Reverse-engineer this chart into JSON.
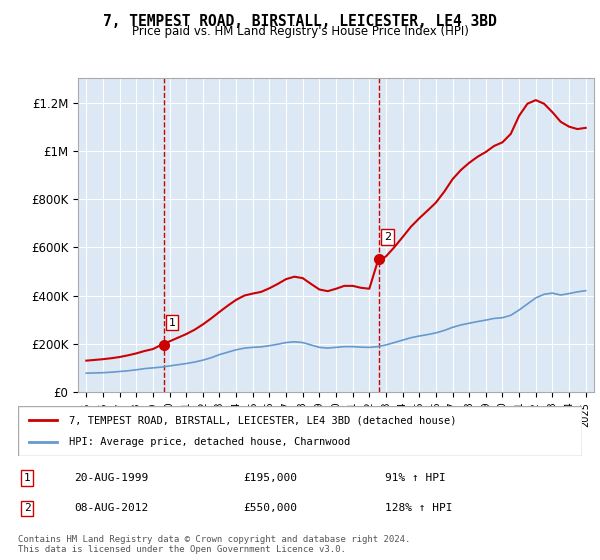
{
  "title": "7, TEMPEST ROAD, BIRSTALL, LEICESTER, LE4 3BD",
  "subtitle": "Price paid vs. HM Land Registry's House Price Index (HPI)",
  "background_color": "#dce9f5",
  "plot_bg_color": "#dce9f5",
  "ylim": [
    0,
    1300000
  ],
  "yticks": [
    0,
    200000,
    400000,
    600000,
    800000,
    1000000,
    1200000
  ],
  "ytick_labels": [
    "£0",
    "£200K",
    "£400K",
    "£600K",
    "£800K",
    "£1M",
    "£1.2M"
  ],
  "sale1_year": 1999.64,
  "sale1_price": 195000,
  "sale1_label": "1",
  "sale1_date": "20-AUG-1999",
  "sale1_hpi_pct": "91% ↑ HPI",
  "sale2_year": 2012.6,
  "sale2_price": 550000,
  "sale2_label": "2",
  "sale2_date": "08-AUG-2012",
  "sale2_hpi_pct": "128% ↑ HPI",
  "red_line_color": "#cc0000",
  "blue_line_color": "#6699cc",
  "vline_color": "#cc0000",
  "legend1_label": "7, TEMPEST ROAD, BIRSTALL, LEICESTER, LE4 3BD (detached house)",
  "legend2_label": "HPI: Average price, detached house, Charnwood",
  "footer": "Contains HM Land Registry data © Crown copyright and database right 2024.\nThis data is licensed under the Open Government Licence v3.0.",
  "hpi_years": [
    1995,
    1995.5,
    1996,
    1996.5,
    1997,
    1997.5,
    1998,
    1998.5,
    1999,
    1999.5,
    2000,
    2000.5,
    2001,
    2001.5,
    2002,
    2002.5,
    2003,
    2003.5,
    2004,
    2004.5,
    2005,
    2005.5,
    2006,
    2006.5,
    2007,
    2007.5,
    2008,
    2008.5,
    2009,
    2009.5,
    2010,
    2010.5,
    2011,
    2011.5,
    2012,
    2012.5,
    2013,
    2013.5,
    2014,
    2014.5,
    2015,
    2015.5,
    2016,
    2016.5,
    2017,
    2017.5,
    2018,
    2018.5,
    2019,
    2019.5,
    2020,
    2020.5,
    2021,
    2021.5,
    2022,
    2022.5,
    2023,
    2023.5,
    2024,
    2024.5,
    2025
  ],
  "hpi_values": [
    78000,
    79000,
    80000,
    82000,
    85000,
    88000,
    92000,
    97000,
    100000,
    103000,
    108000,
    113000,
    118000,
    124000,
    132000,
    142000,
    155000,
    165000,
    175000,
    182000,
    185000,
    187000,
    192000,
    198000,
    205000,
    208000,
    205000,
    195000,
    185000,
    182000,
    185000,
    188000,
    188000,
    186000,
    185000,
    188000,
    195000,
    205000,
    215000,
    225000,
    232000,
    238000,
    245000,
    255000,
    268000,
    278000,
    285000,
    292000,
    298000,
    305000,
    308000,
    318000,
    340000,
    365000,
    390000,
    405000,
    410000,
    402000,
    408000,
    415000,
    420000
  ],
  "property_years": [
    1995,
    1995.5,
    1996,
    1996.5,
    1997,
    1997.5,
    1998,
    1998.5,
    1999,
    1999.5,
    2000,
    2000.5,
    2001,
    2001.5,
    2002,
    2002.5,
    2003,
    2003.5,
    2004,
    2004.5,
    2005,
    2005.5,
    2006,
    2006.5,
    2007,
    2007.5,
    2008,
    2008.5,
    2009,
    2009.5,
    2010,
    2010.5,
    2011,
    2011.5,
    2012,
    2012.5,
    2013,
    2013.5,
    2014,
    2014.5,
    2015,
    2015.5,
    2016,
    2016.5,
    2017,
    2017.5,
    2018,
    2018.5,
    2019,
    2019.5,
    2020,
    2020.5,
    2021,
    2021.5,
    2022,
    2022.5,
    2023,
    2023.5,
    2024,
    2024.5,
    2025
  ],
  "property_values": [
    130000,
    133000,
    136000,
    140000,
    145000,
    152000,
    160000,
    170000,
    178000,
    195000,
    210000,
    225000,
    240000,
    258000,
    280000,
    305000,
    332000,
    358000,
    382000,
    400000,
    408000,
    415000,
    430000,
    448000,
    468000,
    478000,
    472000,
    448000,
    425000,
    418000,
    428000,
    440000,
    440000,
    432000,
    428000,
    540000,
    562000,
    600000,
    642000,
    685000,
    720000,
    752000,
    785000,
    830000,
    882000,
    920000,
    950000,
    975000,
    995000,
    1020000,
    1035000,
    1070000,
    1145000,
    1195000,
    1210000,
    1195000,
    1160000,
    1120000,
    1100000,
    1090000,
    1095000
  ]
}
